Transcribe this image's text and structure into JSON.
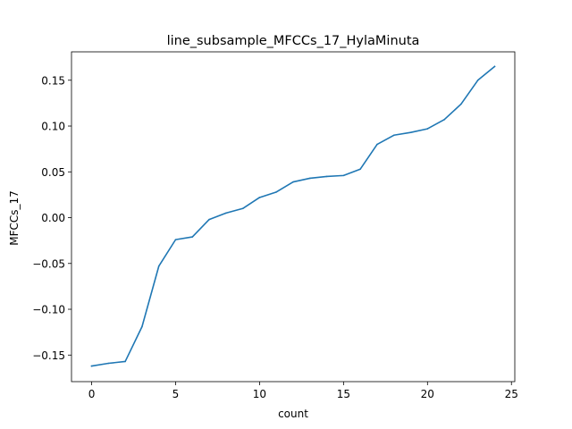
{
  "chart_data": {
    "type": "line",
    "title": "line_subsample_MFCCs_17_HylaMinuta",
    "xlabel": "count",
    "ylabel": "MFCCs_17",
    "xlim": [
      -1.2,
      25.2
    ],
    "ylim": [
      -0.179,
      0.181
    ],
    "xticks": [
      0,
      5,
      10,
      15,
      20,
      25
    ],
    "xtick_labels": [
      "0",
      "5",
      "10",
      "15",
      "20",
      "25"
    ],
    "yticks": [
      -0.15,
      -0.1,
      -0.05,
      0.0,
      0.05,
      0.1,
      0.15
    ],
    "ytick_labels": [
      "−0.15",
      "−0.10",
      "−0.05",
      "0.00",
      "0.05",
      "0.10",
      "0.15"
    ],
    "grid": false,
    "series": [
      {
        "color": "#1f77b4",
        "x": [
          0,
          1,
          2,
          3,
          4,
          5,
          6,
          7,
          8,
          9,
          10,
          11,
          12,
          13,
          14,
          15,
          16,
          17,
          18,
          19,
          20,
          21,
          22,
          23,
          24
        ],
        "values": [
          -0.162,
          -0.159,
          -0.157,
          -0.119,
          -0.053,
          -0.024,
          -0.021,
          -0.002,
          0.005,
          0.01,
          0.022,
          0.028,
          0.039,
          0.043,
          0.045,
          0.046,
          0.053,
          0.08,
          0.09,
          0.093,
          0.097,
          0.107,
          0.124,
          0.15,
          0.165
        ]
      }
    ]
  }
}
